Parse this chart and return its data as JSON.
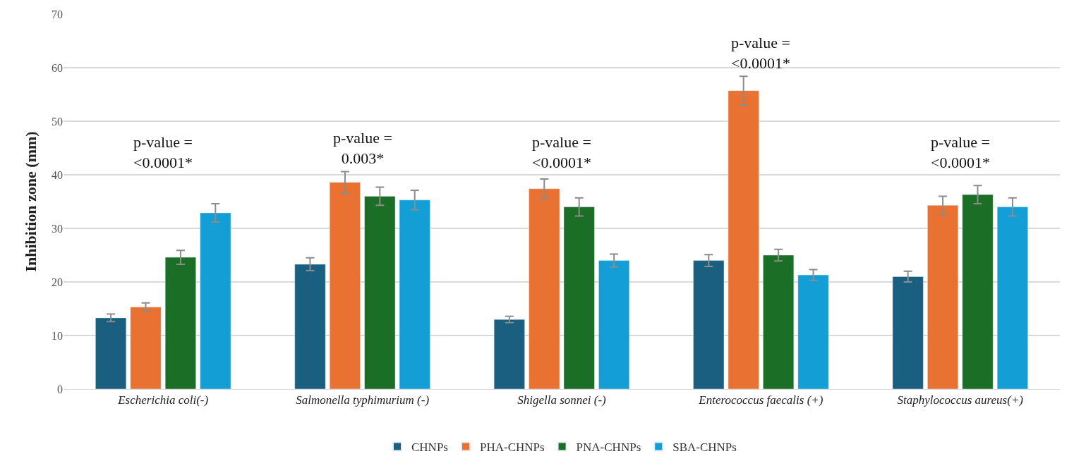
{
  "chart_data": {
    "type": "bar",
    "ylabel": "Inhibition zone (mm)",
    "categories": [
      "Escherichia coli(-)",
      "Salmonella typhimurium (-)",
      "Shigella sonnei (-)",
      "Enterococcus faecalis (+)",
      "Staphylococcus aureus(+)"
    ],
    "series": [
      {
        "name": "CHNPs",
        "color": "#1a5f80",
        "values": [
          13.3,
          23.3,
          13.0,
          24.0,
          21.0
        ],
        "errors": [
          0.7,
          1.2,
          0.6,
          1.1,
          1.0
        ]
      },
      {
        "name": "PHA-CHNPs",
        "color": "#e97131",
        "values": [
          15.3,
          38.6,
          37.4,
          55.7,
          34.3
        ],
        "errors": [
          0.8,
          2.0,
          1.8,
          2.7,
          1.7
        ]
      },
      {
        "name": "PNA-CHNPs",
        "color": "#1b6e26",
        "values": [
          24.6,
          36.0,
          34.0,
          25.0,
          36.3
        ],
        "errors": [
          1.3,
          1.7,
          1.7,
          1.1,
          1.7
        ]
      },
      {
        "name": "SBA-CHNPs",
        "color": "#139fd6",
        "values": [
          32.9,
          35.3,
          24.0,
          21.3,
          34.0
        ],
        "errors": [
          1.7,
          1.8,
          1.2,
          1.0,
          1.7
        ]
      }
    ],
    "ylim": [
      0,
      70
    ],
    "yticks": [
      0,
      10,
      20,
      30,
      40,
      50,
      60,
      70
    ],
    "grid": "y",
    "legend": "bottom",
    "annotations": [
      "p-value =\n<0.0001*",
      "p-value =\n0.003*",
      "p-value =\n<0.0001*",
      "p-value =\n<0.0001*",
      "p-value =\n<0.0001*"
    ]
  }
}
